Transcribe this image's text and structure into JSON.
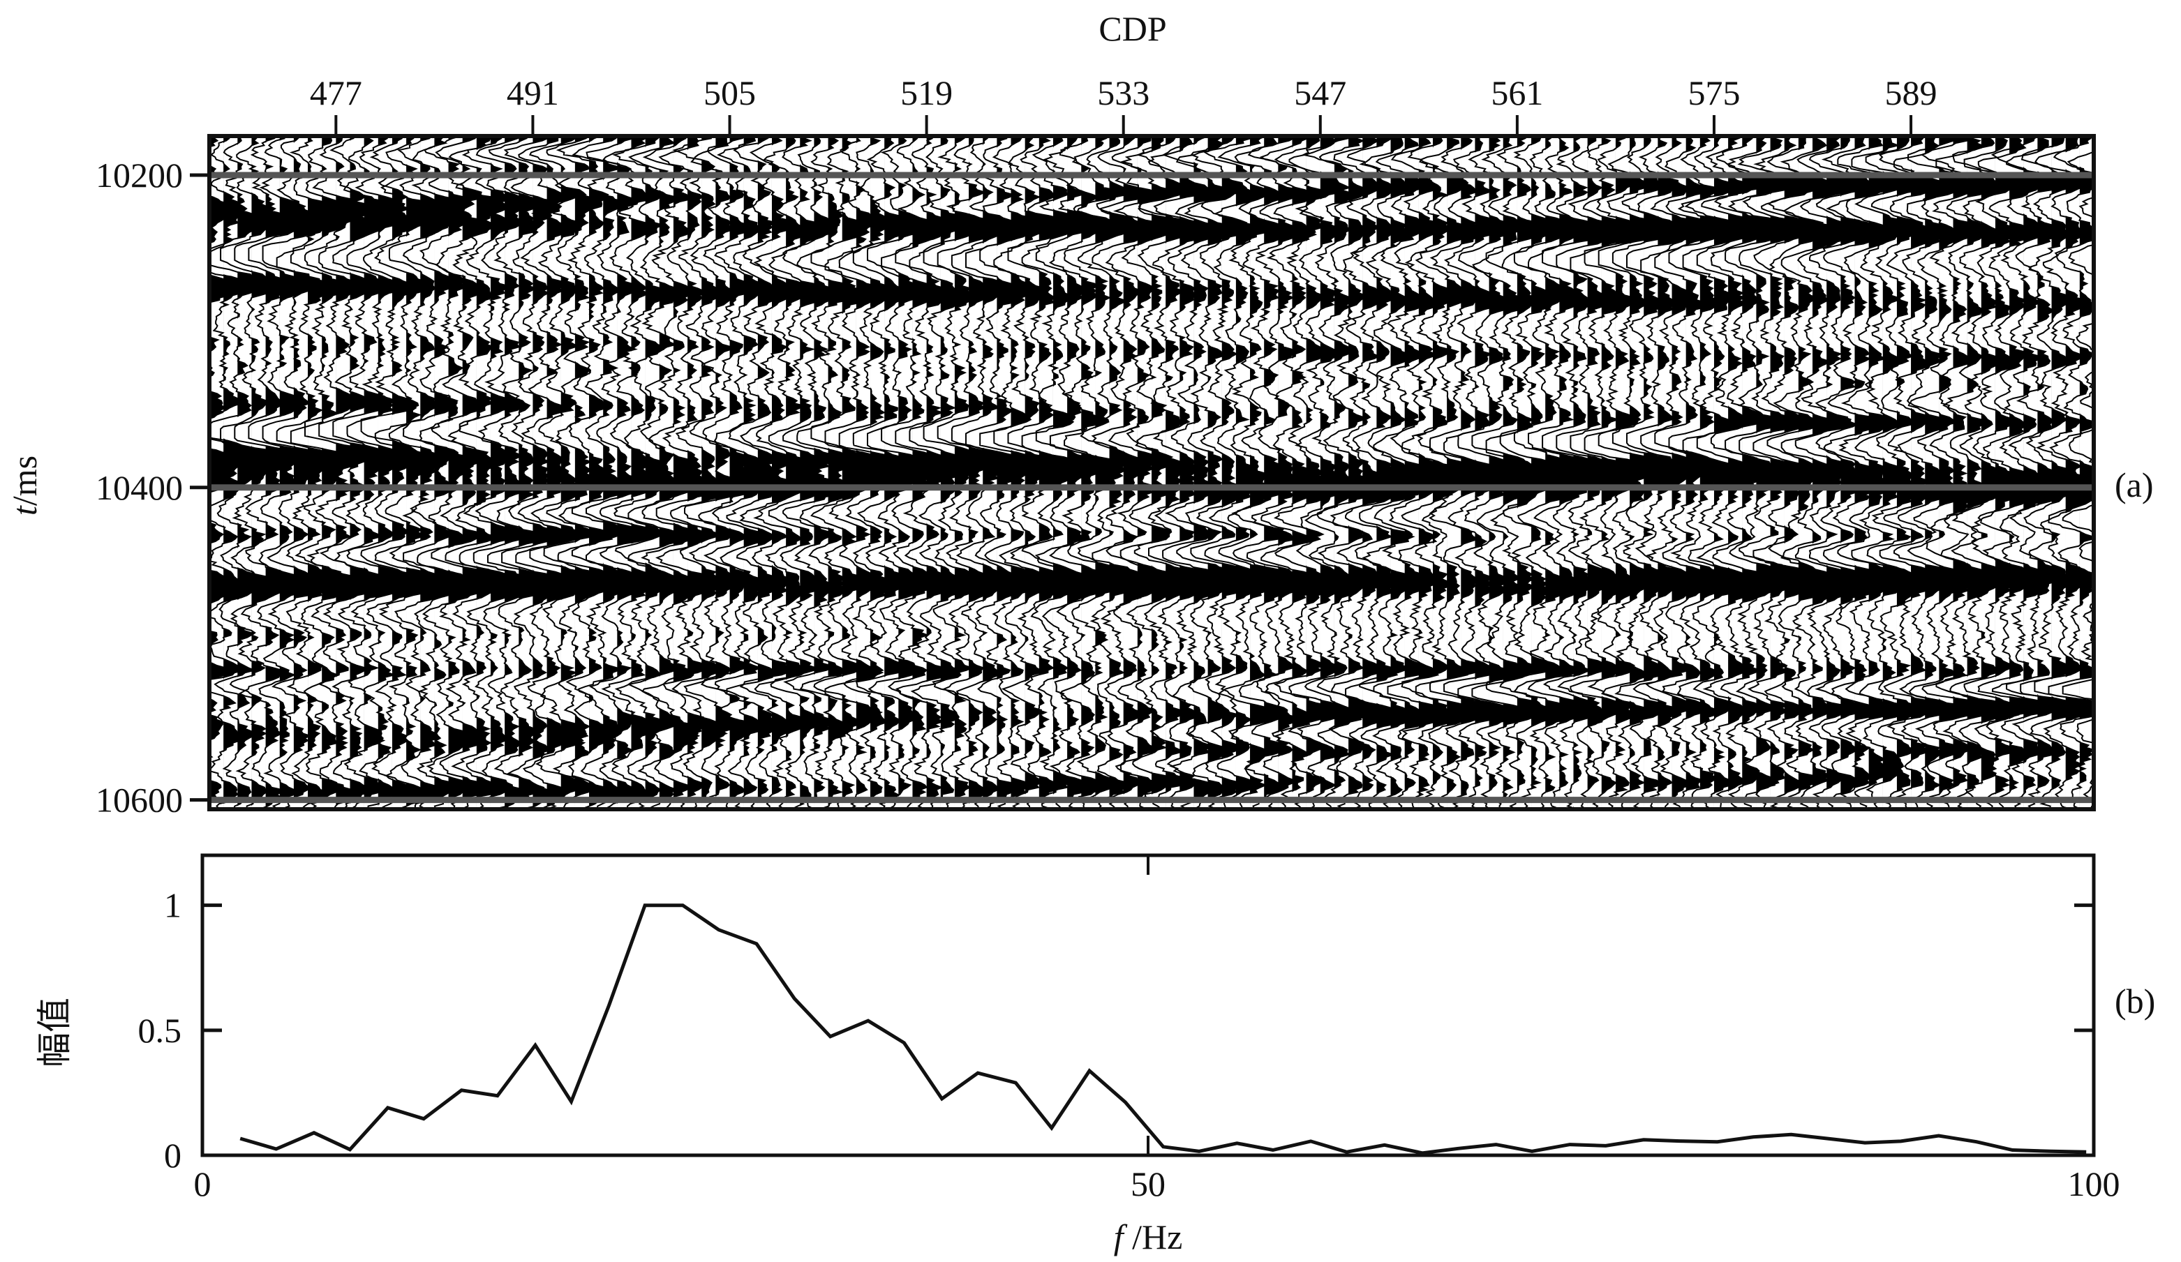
{
  "chart_data": [
    {
      "type": "seismic_section",
      "panel_label": "(a)",
      "xlabel": "CDP",
      "ylabel_italic": "t",
      "ylabel_rest": "/ms",
      "x_ticks": [
        477,
        491,
        505,
        519,
        533,
        547,
        561,
        575,
        589
      ],
      "y_ticks": [
        10200,
        10400,
        10600
      ],
      "xlim": [
        468,
        602
      ],
      "ylim": [
        10175,
        10606
      ],
      "display": "variable-area wiggle, black fill positive",
      "marker_lines_at": [
        10200,
        10400,
        10600
      ],
      "colors": {
        "fill": "#000000",
        "background": "#ffffff",
        "marker_line": "#555555"
      }
    },
    {
      "type": "line",
      "panel_label": "(b)",
      "xlabel_italic": "f",
      "xlabel_rest": " /Hz",
      "ylabel": "幅值",
      "x_ticks": [
        0,
        50,
        100
      ],
      "y_ticks": [
        0,
        0.5,
        1
      ],
      "y_tick_labels": [
        "0",
        "0.5",
        "1"
      ],
      "xlim": [
        0,
        100
      ],
      "ylim": [
        0,
        1.2
      ],
      "grid": false,
      "series": [
        {
          "x": [
            2.0,
            3.9,
            5.9,
            7.8,
            9.8,
            11.7,
            13.7,
            15.6,
            17.6,
            19.5,
            21.5,
            23.4,
            25.4,
            27.3,
            29.3,
            31.3,
            33.2,
            35.2,
            37.1,
            39.1,
            41.0,
            43.0,
            44.9,
            46.9,
            48.8,
            50.8,
            52.7,
            54.7,
            56.6,
            58.6,
            60.5,
            62.5,
            64.5,
            66.4,
            68.4,
            70.3,
            72.3,
            74.2,
            76.2,
            78.1,
            80.1,
            82.0,
            84.0,
            85.9,
            87.9,
            89.8,
            91.8,
            93.8,
            95.7,
            97.7,
            99.6
          ],
          "y": [
            0.067,
            0.025,
            0.09,
            0.023,
            0.19,
            0.146,
            0.26,
            0.238,
            0.44,
            0.215,
            0.6,
            1.0,
            1.0,
            0.902,
            0.846,
            0.627,
            0.475,
            0.538,
            0.45,
            0.226,
            0.329,
            0.29,
            0.109,
            0.338,
            0.212,
            0.034,
            0.016,
            0.048,
            0.021,
            0.056,
            0.013,
            0.041,
            0.009,
            0.027,
            0.043,
            0.016,
            0.043,
            0.038,
            0.062,
            0.057,
            0.054,
            0.073,
            0.083,
            0.067,
            0.05,
            0.056,
            0.078,
            0.054,
            0.021,
            0.016,
            0.013
          ]
        }
      ],
      "colors": {
        "line": "#111111"
      }
    }
  ]
}
